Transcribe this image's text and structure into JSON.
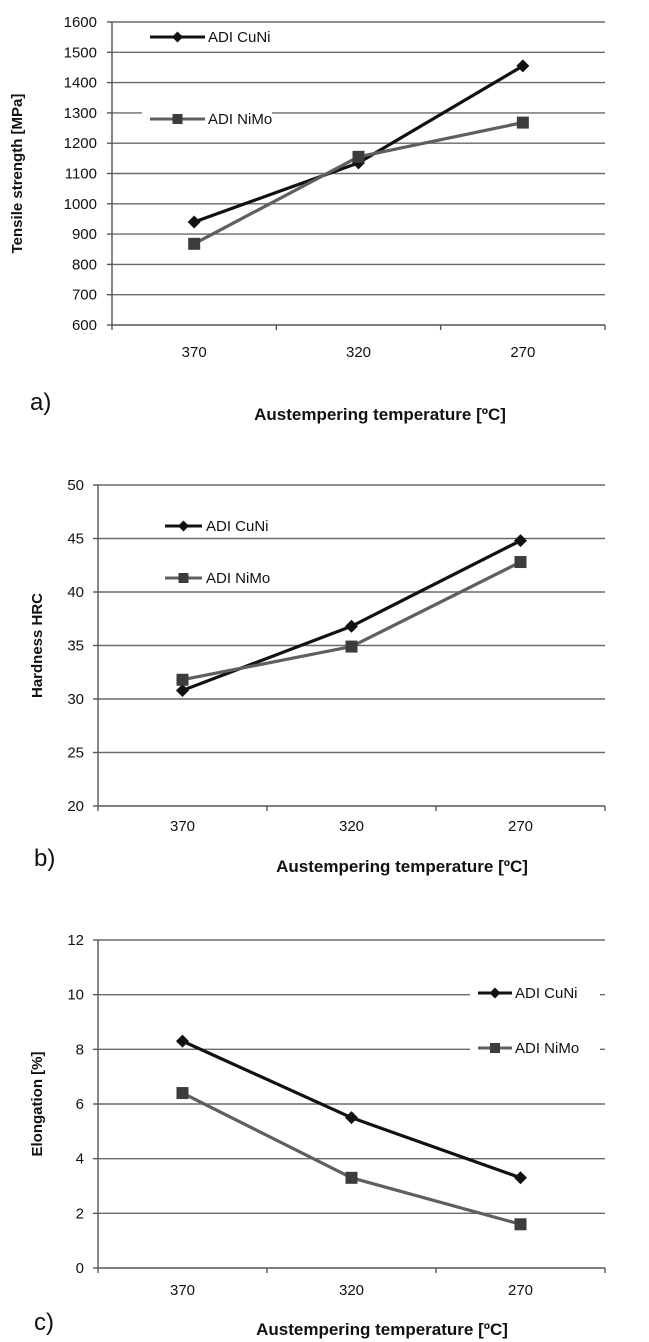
{
  "chart_data": [
    {
      "type": "line",
      "panel_label": "a)",
      "categories": [
        "370",
        "320",
        "270"
      ],
      "xlabel": "Austempering temperature [ºC]",
      "ylabel": "Tensile strength [MPa]",
      "ylim": [
        600,
        1600
      ],
      "yticks": [
        600,
        700,
        800,
        900,
        1000,
        1100,
        1200,
        1300,
        1400,
        1500,
        1600
      ],
      "grid": "horizontal",
      "legend_position": "top-left",
      "series": [
        {
          "name": "ADI CuNi",
          "marker": "diamond",
          "color": "#111111",
          "values": [
            940,
            1135,
            1455
          ]
        },
        {
          "name": "ADI NiMo",
          "marker": "square",
          "color": "#5f5f5f",
          "values": [
            868,
            1155,
            1268
          ]
        }
      ]
    },
    {
      "type": "line",
      "panel_label": "b)",
      "categories": [
        "370",
        "320",
        "270"
      ],
      "xlabel": "Austempering temperature [ºC]",
      "ylabel": "Hardness HRC",
      "ylim": [
        20,
        50
      ],
      "yticks": [
        20,
        25,
        30,
        35,
        40,
        45,
        50
      ],
      "grid": "horizontal",
      "legend_position": "top-left",
      "series": [
        {
          "name": "ADI CuNi",
          "marker": "diamond",
          "color": "#111111",
          "values": [
            30.8,
            36.8,
            44.8
          ]
        },
        {
          "name": "ADI NiMo",
          "marker": "square",
          "color": "#5f5f5f",
          "values": [
            31.8,
            34.9,
            42.8
          ]
        }
      ]
    },
    {
      "type": "line",
      "panel_label": "c)",
      "categories": [
        "370",
        "320",
        "270"
      ],
      "xlabel": "Austempering temperature [ºC]",
      "ylabel": "Elongation [%]",
      "ylim": [
        0,
        12
      ],
      "yticks": [
        0,
        2,
        4,
        6,
        8,
        10,
        12
      ],
      "grid": "horizontal",
      "legend_position": "top-right",
      "series": [
        {
          "name": "ADI CuNi",
          "marker": "diamond",
          "color": "#111111",
          "values": [
            8.3,
            5.5,
            3.3
          ]
        },
        {
          "name": "ADI NiMo",
          "marker": "square",
          "color": "#5f5f5f",
          "values": [
            6.4,
            3.3,
            1.6
          ]
        }
      ]
    }
  ]
}
